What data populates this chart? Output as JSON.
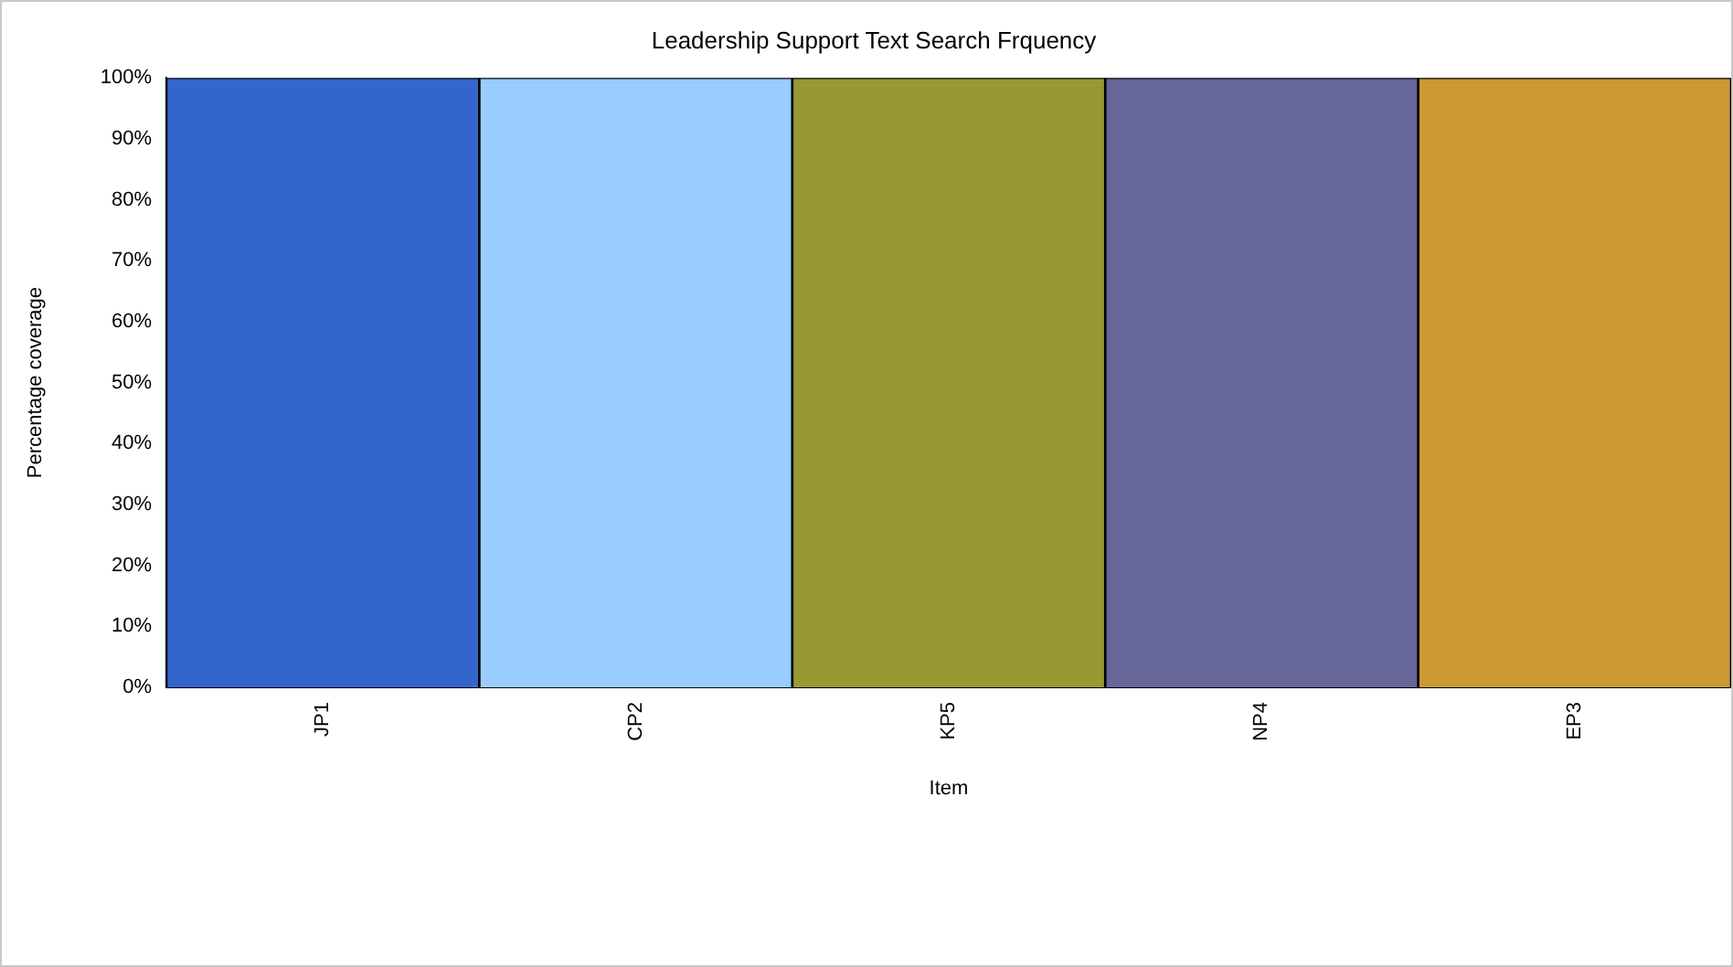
{
  "chart_data": {
    "type": "bar",
    "title": "Leadership Support Text Search Frquency",
    "xlabel": "Item",
    "ylabel": "Percentage coverage",
    "categories": [
      "JP1",
      "CP2",
      "KP5",
      "NP4",
      "EP3"
    ],
    "values": [
      100,
      100,
      100,
      100,
      100
    ],
    "colors": [
      "#3366cc",
      "#99ccff",
      "#999933",
      "#666699",
      "#cc9933"
    ],
    "ylim": [
      0,
      100
    ],
    "yticks": [
      {
        "value": 0,
        "label": "0%"
      },
      {
        "value": 10,
        "label": "10%"
      },
      {
        "value": 20,
        "label": "20%"
      },
      {
        "value": 30,
        "label": "30%"
      },
      {
        "value": 40,
        "label": "40%"
      },
      {
        "value": 50,
        "label": "50%"
      },
      {
        "value": 60,
        "label": "60%"
      },
      {
        "value": 70,
        "label": "70%"
      },
      {
        "value": 80,
        "label": "80%"
      },
      {
        "value": 90,
        "label": "90%"
      },
      {
        "value": 100,
        "label": "100%"
      }
    ],
    "grid": false,
    "legend": false
  }
}
